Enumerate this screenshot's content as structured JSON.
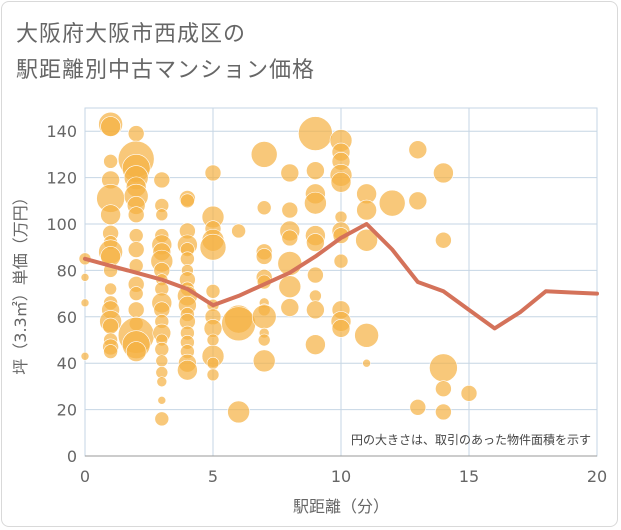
{
  "title_line1": "大阪府大阪市西成区の",
  "title_line2": "駅距離別中古マンション価格",
  "chart_data": {
    "type": "scatter",
    "xlabel": "駅距離（分）",
    "ylabel": "坪（3.3㎡）単価（万円）",
    "xlim": [
      0,
      20
    ],
    "ylim": [
      0,
      150
    ],
    "x_ticks": [
      "0",
      "5",
      "10",
      "15",
      "20"
    ],
    "y_ticks": [
      "0",
      "20",
      "40",
      "60",
      "80",
      "100",
      "120",
      "140"
    ],
    "x_tick_values": [
      0,
      5,
      10,
      15,
      20
    ],
    "y_tick_values": [
      0,
      20,
      40,
      60,
      80,
      100,
      120,
      140
    ],
    "note": "円の大きさは、取引のあった物件面積を示す",
    "bubble_color": "#F5B041",
    "line_color": "#D4725A",
    "grid": true,
    "bubbles": [
      [
        0,
        85,
        6
      ],
      [
        0,
        77,
        4
      ],
      [
        0,
        66,
        4
      ],
      [
        0,
        43,
        4
      ],
      [
        1,
        143,
        12
      ],
      [
        1,
        142,
        10
      ],
      [
        1,
        127,
        7
      ],
      [
        1,
        119,
        9
      ],
      [
        1,
        111,
        14
      ],
      [
        1,
        104,
        10
      ],
      [
        1,
        96,
        8
      ],
      [
        1,
        92,
        7
      ],
      [
        1,
        88,
        12
      ],
      [
        1,
        86,
        10
      ],
      [
        1,
        80,
        7
      ],
      [
        1,
        72,
        6
      ],
      [
        1,
        66,
        7
      ],
      [
        1,
        63,
        9
      ],
      [
        1,
        58,
        11
      ],
      [
        1,
        56,
        8
      ],
      [
        1,
        50,
        7
      ],
      [
        1,
        47,
        8
      ],
      [
        1,
        45,
        7
      ],
      [
        2,
        139,
        8
      ],
      [
        2,
        128,
        18
      ],
      [
        2,
        124,
        14
      ],
      [
        2,
        120,
        12
      ],
      [
        2,
        116,
        10
      ],
      [
        2,
        112,
        12
      ],
      [
        2,
        108,
        9
      ],
      [
        2,
        104,
        8
      ],
      [
        2,
        95,
        7
      ],
      [
        2,
        89,
        8
      ],
      [
        2,
        82,
        7
      ],
      [
        2,
        74,
        8
      ],
      [
        2,
        70,
        7
      ],
      [
        2,
        63,
        8
      ],
      [
        2,
        57,
        7
      ],
      [
        2,
        52,
        18
      ],
      [
        2,
        48,
        14
      ],
      [
        2,
        45,
        10
      ],
      [
        3,
        119,
        8
      ],
      [
        3,
        108,
        7
      ],
      [
        3,
        104,
        6
      ],
      [
        3,
        95,
        7
      ],
      [
        3,
        91,
        10
      ],
      [
        3,
        88,
        9
      ],
      [
        3,
        84,
        11
      ],
      [
        3,
        80,
        8
      ],
      [
        3,
        76,
        6
      ],
      [
        3,
        72,
        7
      ],
      [
        3,
        66,
        10
      ],
      [
        3,
        63,
        8
      ],
      [
        3,
        58,
        7
      ],
      [
        3,
        53,
        9
      ],
      [
        3,
        50,
        6
      ],
      [
        3,
        46,
        7
      ],
      [
        3,
        41,
        6
      ],
      [
        3,
        36,
        6
      ],
      [
        3,
        32,
        5
      ],
      [
        3,
        24,
        4
      ],
      [
        3,
        16,
        7
      ],
      [
        4,
        111,
        8
      ],
      [
        4,
        110,
        7
      ],
      [
        4,
        97,
        8
      ],
      [
        4,
        91,
        10
      ],
      [
        4,
        89,
        7
      ],
      [
        4,
        85,
        7
      ],
      [
        4,
        80,
        6
      ],
      [
        4,
        76,
        8
      ],
      [
        4,
        72,
        7
      ],
      [
        4,
        69,
        10
      ],
      [
        4,
        65,
        9
      ],
      [
        4,
        61,
        7
      ],
      [
        4,
        58,
        8
      ],
      [
        4,
        53,
        7
      ],
      [
        4,
        49,
        7
      ],
      [
        4,
        45,
        7
      ],
      [
        4,
        40,
        9
      ],
      [
        4,
        37,
        10
      ],
      [
        5,
        122,
        8
      ],
      [
        5,
        103,
        11
      ],
      [
        5,
        98,
        8
      ],
      [
        5,
        93,
        11
      ],
      [
        5,
        90,
        13
      ],
      [
        5,
        71,
        7
      ],
      [
        5,
        65,
        6
      ],
      [
        5,
        60,
        8
      ],
      [
        5,
        55,
        9
      ],
      [
        5,
        50,
        6
      ],
      [
        5,
        43,
        11
      ],
      [
        5,
        40,
        6
      ],
      [
        5,
        35,
        6
      ],
      [
        6,
        97,
        7
      ],
      [
        6,
        59,
        14
      ],
      [
        6,
        57,
        17
      ],
      [
        6,
        19,
        11
      ],
      [
        7,
        130,
        13
      ],
      [
        7,
        107,
        7
      ],
      [
        7,
        88,
        8
      ],
      [
        7,
        86,
        8
      ],
      [
        7,
        77,
        8
      ],
      [
        7,
        75,
        7
      ],
      [
        7,
        66,
        5
      ],
      [
        7,
        63,
        6
      ],
      [
        7,
        60,
        12
      ],
      [
        7,
        53,
        5
      ],
      [
        7,
        50,
        6
      ],
      [
        7,
        41,
        11
      ],
      [
        8,
        122,
        9
      ],
      [
        8,
        106,
        8
      ],
      [
        8,
        97,
        10
      ],
      [
        8,
        94,
        8
      ],
      [
        8,
        83,
        12
      ],
      [
        8,
        73,
        11
      ],
      [
        8,
        64,
        9
      ],
      [
        9,
        139,
        17
      ],
      [
        9,
        123,
        9
      ],
      [
        9,
        113,
        10
      ],
      [
        9,
        109,
        11
      ],
      [
        9,
        95,
        10
      ],
      [
        9,
        92,
        9
      ],
      [
        9,
        78,
        8
      ],
      [
        9,
        69,
        6
      ],
      [
        9,
        63,
        9
      ],
      [
        9,
        48,
        10
      ],
      [
        10,
        136,
        11
      ],
      [
        10,
        131,
        9
      ],
      [
        10,
        127,
        9
      ],
      [
        10,
        121,
        11
      ],
      [
        10,
        118,
        10
      ],
      [
        10,
        103,
        6
      ],
      [
        10,
        97,
        9
      ],
      [
        10,
        95,
        8
      ],
      [
        10,
        84,
        7
      ],
      [
        10,
        63,
        9
      ],
      [
        10,
        58,
        10
      ],
      [
        10,
        55,
        9
      ],
      [
        11,
        113,
        10
      ],
      [
        11,
        106,
        10
      ],
      [
        11,
        93,
        11
      ],
      [
        11,
        52,
        12
      ],
      [
        11,
        40,
        4
      ],
      [
        12,
        109,
        13
      ],
      [
        13,
        132,
        9
      ],
      [
        13,
        110,
        9
      ],
      [
        13,
        21,
        8
      ],
      [
        14,
        122,
        10
      ],
      [
        14,
        93,
        8
      ],
      [
        14,
        38,
        14
      ],
      [
        14,
        29,
        8
      ],
      [
        14,
        19,
        8
      ],
      [
        15,
        27,
        8
      ]
    ],
    "trend_line": [
      [
        0,
        85
      ],
      [
        1,
        82
      ],
      [
        2,
        79
      ],
      [
        3,
        76
      ],
      [
        4,
        72
      ],
      [
        5,
        65
      ],
      [
        6,
        69
      ],
      [
        7,
        74
      ],
      [
        8,
        79
      ],
      [
        9,
        86
      ],
      [
        10,
        94
      ],
      [
        11,
        100
      ],
      [
        12,
        89
      ],
      [
        13,
        75
      ],
      [
        14,
        71
      ],
      [
        15,
        63
      ],
      [
        16,
        55
      ],
      [
        17,
        62
      ],
      [
        18,
        71
      ],
      [
        19,
        70.5
      ],
      [
        20,
        70
      ]
    ]
  }
}
